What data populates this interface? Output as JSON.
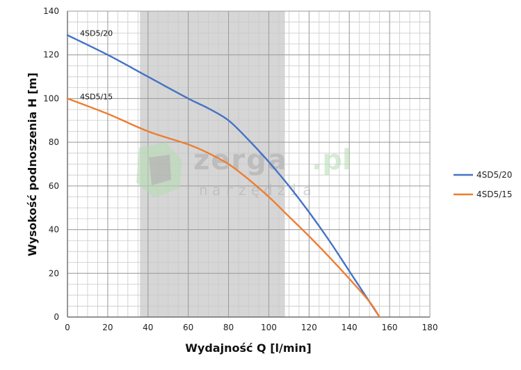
{
  "chart_data": {
    "type": "line",
    "xlabel": "Wydajność Q [l/min]",
    "ylabel": "Wysokość podnoszenia H [m]",
    "xlim": [
      0,
      180
    ],
    "ylim": [
      0,
      140
    ],
    "x_ticks": [
      0,
      20,
      40,
      60,
      80,
      100,
      120,
      140,
      160,
      180
    ],
    "y_ticks": [
      0,
      20,
      40,
      60,
      80,
      100,
      120,
      140
    ],
    "grid": true,
    "minor_grid_step_x": 5,
    "minor_grid_step_y": 5,
    "shaded_range_x": [
      36,
      108
    ],
    "legend_position": "right",
    "series": [
      {
        "name": "4SD5/20",
        "color": "#4472c4",
        "x": [
          0,
          20,
          40,
          60,
          70,
          80,
          90,
          100,
          110,
          120,
          130,
          140,
          150,
          155
        ],
        "y": [
          129,
          120,
          110,
          100,
          95.5,
          90,
          81,
          71,
          60,
          48,
          35,
          21,
          7,
          0
        ]
      },
      {
        "name": "4SD5/15",
        "color": "#ed7d31",
        "x": [
          0,
          20,
          40,
          60,
          70,
          80,
          90,
          100,
          110,
          120,
          130,
          140,
          150,
          155
        ],
        "y": [
          100,
          93,
          85,
          79,
          75,
          70,
          63,
          55,
          46,
          37,
          27.5,
          17.5,
          7,
          0
        ]
      }
    ],
    "annotations": [
      {
        "text": "4SD5/20",
        "series": 0
      },
      {
        "text": "4SD5/15",
        "series": 1
      }
    ]
  },
  "watermark": {
    "brand": "zerga",
    "tld": ".pl",
    "tagline": "narzędzia"
  }
}
